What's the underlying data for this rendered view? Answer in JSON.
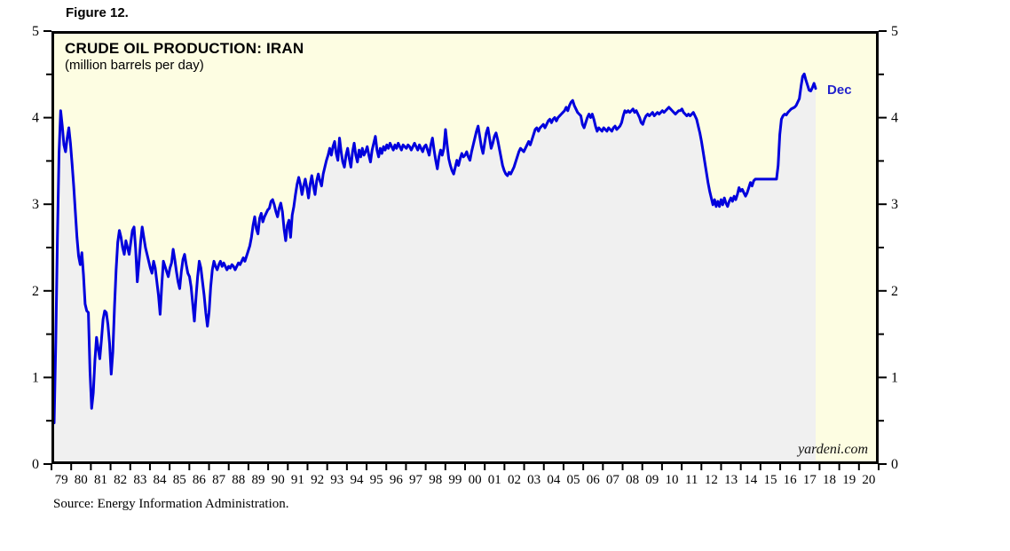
{
  "figure_label": "Figure 12.",
  "chart": {
    "title": "CRUDE OIL PRODUCTION: IRAN",
    "subtitle": "(million barrels per day)",
    "watermark": "yardeni.com",
    "last_point_label": "Dec",
    "source_note": "Source: Energy Information Administration.",
    "colors": {
      "line": "#0000DD",
      "area_fill": "#F0F0F0",
      "plot_bg": "#FDFDE2",
      "axis": "#000000",
      "tick_text": "#000000",
      "annotation_blue": "#2222CC"
    }
  },
  "chart_data": {
    "type": "area",
    "title": "CRUDE OIL PRODUCTION: IRAN",
    "subtitle": "(million barrels per day)",
    "ylabel": "million barrels per day",
    "xlim": [
      1979,
      2021
    ],
    "ylim": [
      0,
      5
    ],
    "y_major_ticks": [
      0,
      1,
      2,
      3,
      4,
      5
    ],
    "y_minor_step": 0.5,
    "grid": "off",
    "legend": "none",
    "x_tick_labels": [
      "79",
      "80",
      "81",
      "82",
      "83",
      "84",
      "85",
      "86",
      "87",
      "88",
      "89",
      "90",
      "91",
      "92",
      "93",
      "94",
      "95",
      "96",
      "97",
      "98",
      "99",
      "00",
      "01",
      "02",
      "03",
      "04",
      "05",
      "06",
      "07",
      "08",
      "09",
      "10",
      "11",
      "12",
      "13",
      "14",
      "15",
      "16",
      "17",
      "18",
      "19",
      "20"
    ],
    "annotation": {
      "text": "Dec",
      "x": "2017-12",
      "y": 4.36
    },
    "series": [
      {
        "name": "Iran crude oil production",
        "frequency": "monthly",
        "start": "1979-01",
        "end": "2017-12",
        "values": [
          0.45,
          1.4,
          2.6,
          3.6,
          4.1,
          3.92,
          3.7,
          3.62,
          3.78,
          3.9,
          3.72,
          3.48,
          3.22,
          2.92,
          2.62,
          2.4,
          2.3,
          2.44,
          2.18,
          1.84,
          1.76,
          1.74,
          1.05,
          0.62,
          0.8,
          1.18,
          1.45,
          1.32,
          1.2,
          1.42,
          1.66,
          1.76,
          1.74,
          1.6,
          1.38,
          1.02,
          1.28,
          1.8,
          2.24,
          2.56,
          2.7,
          2.62,
          2.5,
          2.42,
          2.58,
          2.5,
          2.42,
          2.56,
          2.7,
          2.74,
          2.48,
          2.1,
          2.32,
          2.56,
          2.74,
          2.62,
          2.5,
          2.42,
          2.34,
          2.26,
          2.2,
          2.34,
          2.26,
          2.1,
          1.94,
          1.72,
          2.06,
          2.34,
          2.28,
          2.22,
          2.16,
          2.26,
          2.32,
          2.48,
          2.36,
          2.22,
          2.1,
          2.02,
          2.22,
          2.36,
          2.42,
          2.3,
          2.2,
          2.16,
          2.04,
          1.84,
          1.64,
          1.92,
          2.16,
          2.34,
          2.26,
          2.1,
          1.94,
          1.74,
          1.58,
          1.74,
          2.04,
          2.24,
          2.34,
          2.28,
          2.24,
          2.3,
          2.34,
          2.28,
          2.32,
          2.28,
          2.24,
          2.28,
          2.26,
          2.3,
          2.28,
          2.24,
          2.28,
          2.32,
          2.3,
          2.34,
          2.38,
          2.34,
          2.4,
          2.46,
          2.52,
          2.62,
          2.76,
          2.86,
          2.72,
          2.66,
          2.84,
          2.9,
          2.8,
          2.86,
          2.9,
          2.94,
          2.96,
          3.04,
          3.06,
          3.0,
          2.92,
          2.86,
          2.96,
          3.02,
          2.92,
          2.72,
          2.58,
          2.76,
          2.82,
          2.62,
          2.88,
          2.98,
          3.12,
          3.24,
          3.32,
          3.24,
          3.12,
          3.22,
          3.3,
          3.2,
          3.08,
          3.24,
          3.34,
          3.22,
          3.12,
          3.28,
          3.36,
          3.28,
          3.22,
          3.36,
          3.44,
          3.52,
          3.58,
          3.66,
          3.58,
          3.68,
          3.74,
          3.6,
          3.52,
          3.78,
          3.62,
          3.5,
          3.44,
          3.58,
          3.66,
          3.54,
          3.44,
          3.62,
          3.72,
          3.58,
          3.5,
          3.64,
          3.56,
          3.66,
          3.58,
          3.62,
          3.68,
          3.58,
          3.5,
          3.64,
          3.72,
          3.8,
          3.64,
          3.56,
          3.66,
          3.6,
          3.68,
          3.64,
          3.7,
          3.66,
          3.72,
          3.68,
          3.64,
          3.7,
          3.66,
          3.72,
          3.68,
          3.64,
          3.7,
          3.68,
          3.66,
          3.7,
          3.68,
          3.64,
          3.68,
          3.72,
          3.68,
          3.64,
          3.7,
          3.66,
          3.62,
          3.68,
          3.7,
          3.64,
          3.58,
          3.7,
          3.78,
          3.64,
          3.52,
          3.42,
          3.56,
          3.64,
          3.58,
          3.66,
          3.88,
          3.7,
          3.54,
          3.46,
          3.4,
          3.36,
          3.44,
          3.52,
          3.46,
          3.54,
          3.6,
          3.56,
          3.58,
          3.62,
          3.56,
          3.52,
          3.62,
          3.7,
          3.78,
          3.86,
          3.92,
          3.8,
          3.68,
          3.6,
          3.72,
          3.84,
          3.9,
          3.78,
          3.66,
          3.72,
          3.8,
          3.84,
          3.76,
          3.66,
          3.56,
          3.46,
          3.4,
          3.36,
          3.34,
          3.38,
          3.36,
          3.4,
          3.44,
          3.5,
          3.56,
          3.62,
          3.66,
          3.64,
          3.62,
          3.66,
          3.7,
          3.74,
          3.7,
          3.76,
          3.82,
          3.88,
          3.9,
          3.86,
          3.9,
          3.92,
          3.94,
          3.9,
          3.94,
          3.98,
          4.0,
          3.96,
          4.0,
          4.02,
          3.98,
          4.02,
          4.04,
          4.06,
          4.08,
          4.1,
          4.14,
          4.1,
          4.16,
          4.2,
          4.22,
          4.16,
          4.12,
          4.08,
          4.06,
          4.04,
          3.94,
          3.9,
          3.96,
          4.02,
          4.06,
          4.02,
          4.06,
          4.0,
          3.92,
          3.86,
          3.9,
          3.88,
          3.86,
          3.9,
          3.88,
          3.86,
          3.9,
          3.88,
          3.86,
          3.9,
          3.92,
          3.88,
          3.9,
          3.92,
          3.96,
          4.04,
          4.1,
          4.08,
          4.1,
          4.08,
          4.1,
          4.12,
          4.08,
          4.1,
          4.06,
          4.02,
          3.96,
          3.94,
          4.0,
          4.04,
          4.06,
          4.04,
          4.06,
          4.08,
          4.04,
          4.06,
          4.08,
          4.06,
          4.08,
          4.1,
          4.08,
          4.1,
          4.12,
          4.14,
          4.12,
          4.1,
          4.08,
          4.06,
          4.08,
          4.1,
          4.1,
          4.12,
          4.08,
          4.06,
          4.04,
          4.06,
          4.04,
          4.06,
          4.08,
          4.04,
          4.0,
          3.92,
          3.84,
          3.74,
          3.62,
          3.5,
          3.38,
          3.26,
          3.16,
          3.08,
          3.0,
          3.06,
          2.98,
          3.04,
          2.98,
          3.06,
          3.0,
          3.08,
          3.02,
          2.98,
          3.04,
          3.08,
          3.04,
          3.1,
          3.06,
          3.12,
          3.2,
          3.16,
          3.18,
          3.14,
          3.1,
          3.14,
          3.2,
          3.26,
          3.22,
          3.28,
          3.3,
          3.3,
          3.3,
          3.3,
          3.3,
          3.3,
          3.3,
          3.3,
          3.3,
          3.3,
          3.3,
          3.3,
          3.3,
          3.3,
          3.46,
          3.82,
          4.0,
          4.04,
          4.06,
          4.05,
          4.08,
          4.1,
          4.12,
          4.13,
          4.14,
          4.16,
          4.2,
          4.24,
          4.38,
          4.5,
          4.53,
          4.46,
          4.4,
          4.34,
          4.33,
          4.37,
          4.42,
          4.36
        ]
      }
    ]
  }
}
